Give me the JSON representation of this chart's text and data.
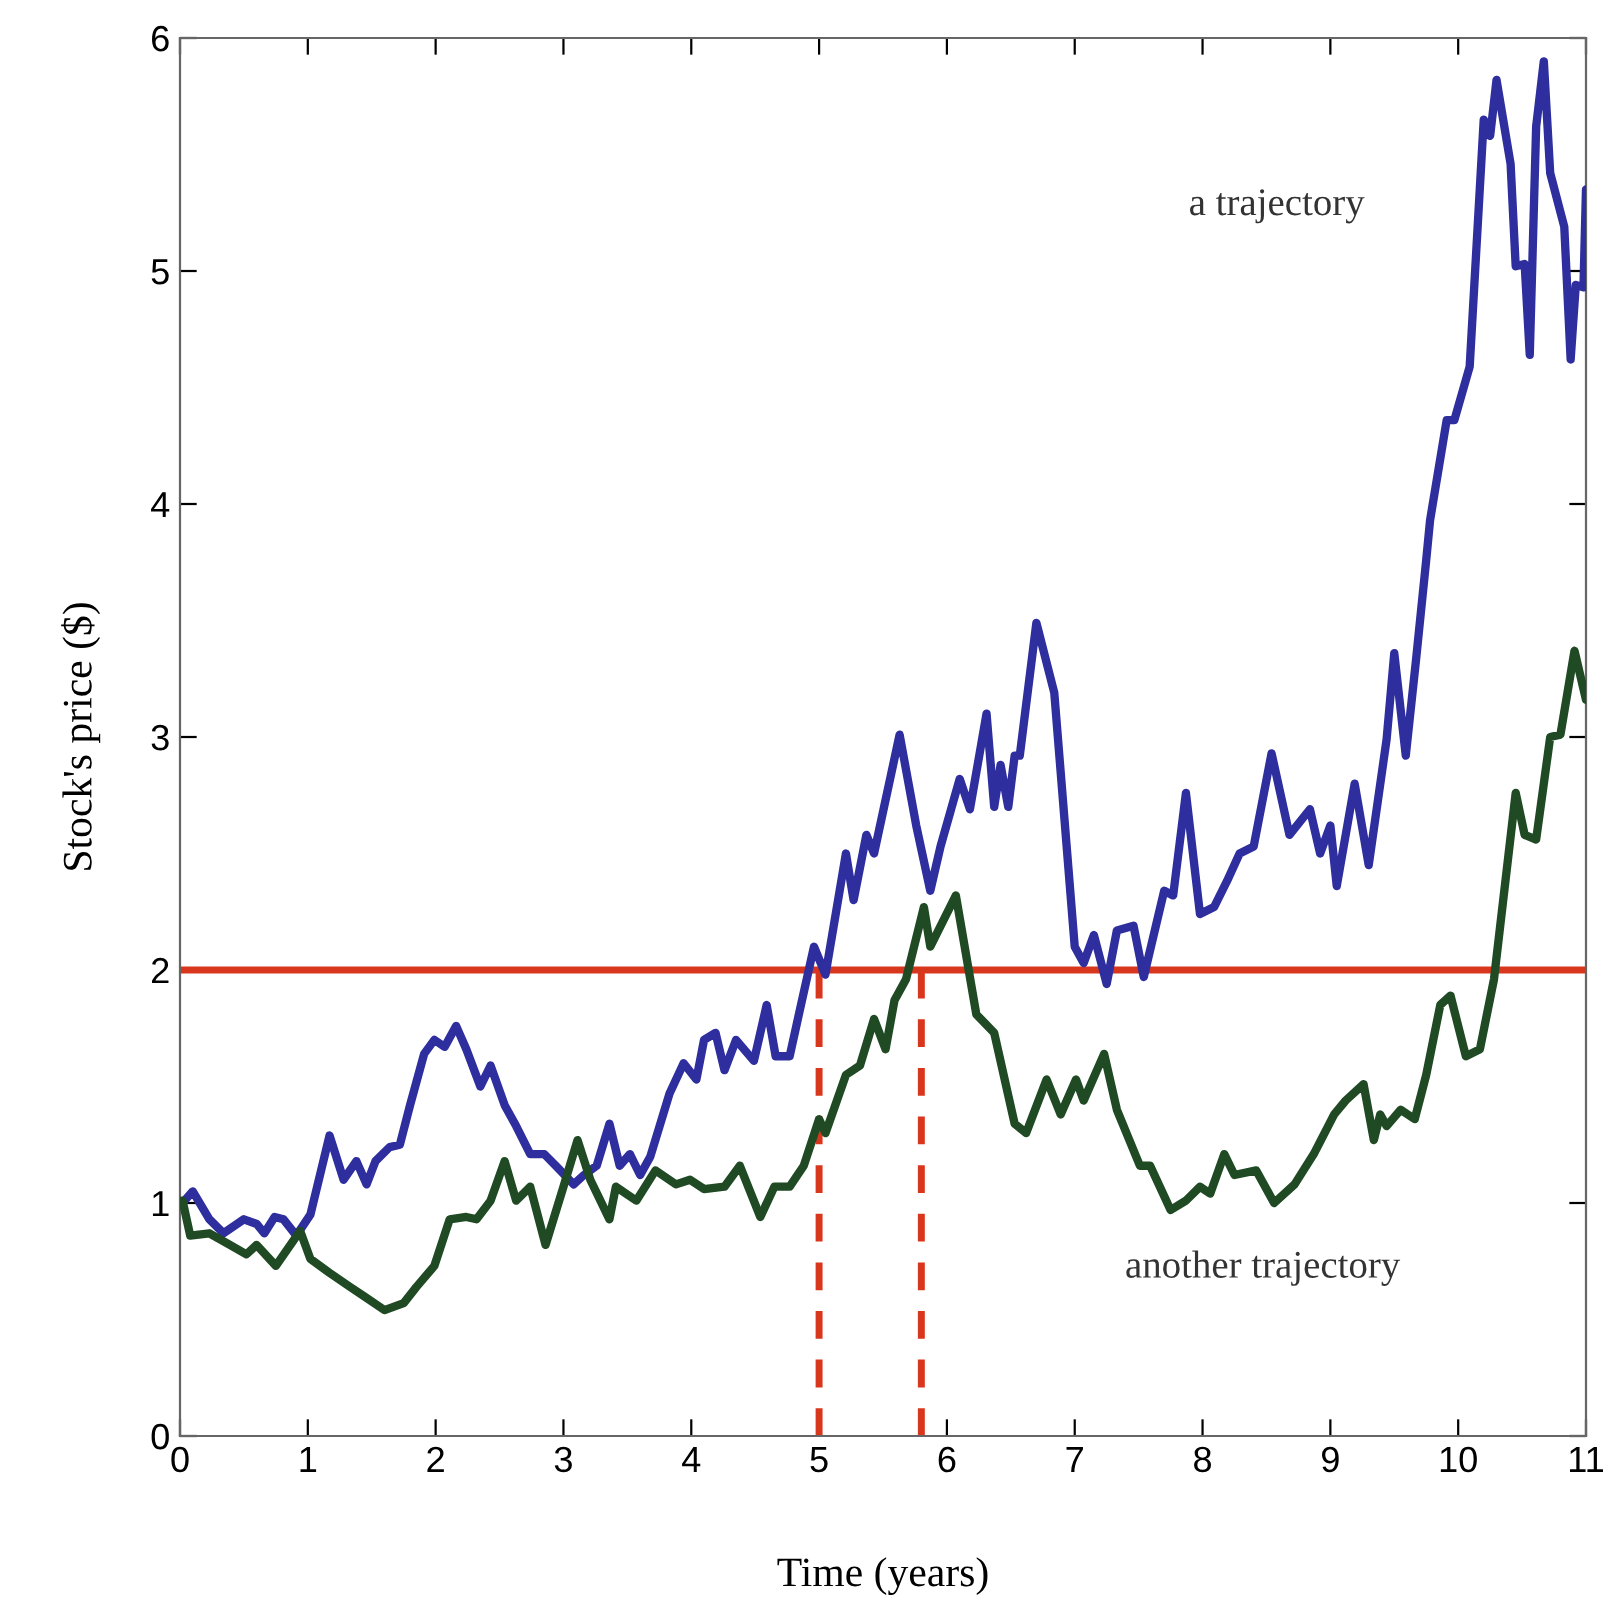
{
  "chart_data": {
    "type": "line",
    "xlabel": "Time (years)",
    "ylabel": "Stock's price ($)",
    "xlim": [
      0,
      11
    ],
    "ylim": [
      0,
      6
    ],
    "xticks": [
      0,
      1,
      2,
      3,
      4,
      5,
      6,
      7,
      8,
      9,
      10,
      11
    ],
    "yticks": [
      0,
      1,
      2,
      3,
      4,
      5,
      6
    ],
    "grid": false,
    "legend": false,
    "marker": "none",
    "line_style": "solid",
    "series": [
      {
        "name": "a trajectory",
        "color": "#2e2e9e",
        "x": [
          0.02,
          0.1,
          0.23,
          0.34,
          0.5,
          0.6,
          0.66,
          0.74,
          0.81,
          0.91,
          1.02,
          1.17,
          1.28,
          1.38,
          1.46,
          1.53,
          1.64,
          1.72,
          1.8,
          1.91,
          1.99,
          2.07,
          2.16,
          2.24,
          2.35,
          2.43,
          2.54,
          2.63,
          2.74,
          2.85,
          2.94,
          3.08,
          3.16,
          3.26,
          3.36,
          3.44,
          3.52,
          3.6,
          3.68,
          3.83,
          3.94,
          4.04,
          4.1,
          4.19,
          4.26,
          4.35,
          4.49,
          4.59,
          4.66,
          4.77,
          4.85,
          4.96,
          5.05,
          5.21,
          5.27,
          5.37,
          5.43,
          5.63,
          5.76,
          5.87,
          5.95,
          6.1,
          6.18,
          6.31,
          6.37,
          6.42,
          6.48,
          6.53,
          6.57,
          6.7,
          6.84,
          7.0,
          7.07,
          7.15,
          7.25,
          7.33,
          7.46,
          7.54,
          7.7,
          7.77,
          7.87,
          7.98,
          8.09,
          8.19,
          8.29,
          8.4,
          8.54,
          8.68,
          8.84,
          8.92,
          9.0,
          9.05,
          9.19,
          9.3,
          9.44,
          9.5,
          9.59,
          9.67,
          9.75,
          9.78,
          9.91,
          9.97,
          10.09,
          10.2,
          10.25,
          10.3,
          10.41,
          10.45,
          10.52,
          10.56,
          10.61,
          10.67,
          10.72,
          10.83,
          10.88,
          10.92,
          10.98,
          11.0
        ],
        "values": [
          1.0,
          1.05,
          0.93,
          0.87,
          0.93,
          0.91,
          0.87,
          0.94,
          0.93,
          0.86,
          0.95,
          1.29,
          1.1,
          1.18,
          1.08,
          1.18,
          1.24,
          1.25,
          1.42,
          1.64,
          1.7,
          1.67,
          1.76,
          1.66,
          1.5,
          1.59,
          1.42,
          1.33,
          1.21,
          1.21,
          1.16,
          1.08,
          1.12,
          1.16,
          1.34,
          1.16,
          1.21,
          1.12,
          1.2,
          1.47,
          1.6,
          1.53,
          1.7,
          1.73,
          1.57,
          1.7,
          1.61,
          1.85,
          1.63,
          1.63,
          1.83,
          2.1,
          1.98,
          2.5,
          2.3,
          2.58,
          2.5,
          3.01,
          2.62,
          2.34,
          2.53,
          2.82,
          2.69,
          3.1,
          2.7,
          2.88,
          2.7,
          2.92,
          2.92,
          3.49,
          3.19,
          2.1,
          2.03,
          2.15,
          1.94,
          2.17,
          2.19,
          1.97,
          2.34,
          2.32,
          2.76,
          2.24,
          2.27,
          2.38,
          2.5,
          2.53,
          2.93,
          2.58,
          2.69,
          2.5,
          2.62,
          2.36,
          2.8,
          2.45,
          2.99,
          3.36,
          2.92,
          3.33,
          3.76,
          3.93,
          4.36,
          4.36,
          4.59,
          5.65,
          5.58,
          5.82,
          5.46,
          5.02,
          5.03,
          4.64,
          5.62,
          5.9,
          5.42,
          5.19,
          4.62,
          4.94,
          4.93,
          5.35
        ]
      },
      {
        "name": "another trajectory",
        "color": "#1f4a24",
        "x": [
          0.02,
          0.08,
          0.23,
          0.39,
          0.52,
          0.6,
          0.75,
          0.94,
          1.02,
          1.17,
          1.33,
          1.44,
          1.6,
          1.75,
          1.85,
          1.99,
          2.11,
          2.24,
          2.32,
          2.43,
          2.54,
          2.63,
          2.74,
          2.86,
          3.0,
          3.11,
          3.21,
          3.36,
          3.41,
          3.57,
          3.72,
          3.88,
          3.99,
          4.1,
          4.26,
          4.38,
          4.54,
          4.65,
          4.77,
          4.88,
          5.0,
          5.05,
          5.21,
          5.32,
          5.43,
          5.52,
          5.59,
          5.68,
          5.82,
          5.87,
          6.07,
          6.23,
          6.37,
          6.53,
          6.62,
          6.78,
          6.89,
          7.01,
          7.07,
          7.23,
          7.33,
          7.51,
          7.59,
          7.75,
          7.87,
          7.98,
          8.06,
          8.17,
          8.25,
          8.42,
          8.56,
          8.72,
          8.87,
          9.03,
          9.12,
          9.26,
          9.34,
          9.39,
          9.44,
          9.55,
          9.66,
          9.75,
          9.86,
          9.94,
          10.06,
          10.17,
          10.28,
          10.45,
          10.52,
          10.61,
          10.72,
          10.8,
          10.91,
          11.0
        ],
        "values": [
          1.01,
          0.86,
          0.87,
          0.82,
          0.78,
          0.82,
          0.73,
          0.88,
          0.76,
          0.7,
          0.64,
          0.6,
          0.54,
          0.57,
          0.64,
          0.73,
          0.93,
          0.94,
          0.93,
          1.01,
          1.18,
          1.01,
          1.07,
          0.82,
          1.07,
          1.27,
          1.1,
          0.93,
          1.07,
          1.01,
          1.14,
          1.08,
          1.1,
          1.06,
          1.07,
          1.16,
          0.94,
          1.07,
          1.07,
          1.16,
          1.36,
          1.3,
          1.55,
          1.59,
          1.79,
          1.66,
          1.87,
          1.96,
          2.27,
          2.1,
          2.32,
          1.81,
          1.73,
          1.34,
          1.3,
          1.53,
          1.38,
          1.53,
          1.44,
          1.64,
          1.4,
          1.16,
          1.16,
          0.97,
          1.01,
          1.07,
          1.04,
          1.21,
          1.12,
          1.14,
          1.0,
          1.08,
          1.21,
          1.38,
          1.44,
          1.51,
          1.27,
          1.38,
          1.33,
          1.4,
          1.36,
          1.55,
          1.85,
          1.89,
          1.63,
          1.66,
          1.96,
          2.76,
          2.58,
          2.56,
          3.0,
          3.01,
          3.37,
          3.16
        ]
      },
      {
        "color": "#d9361e",
        "line_style": "dashed",
        "x": [
          5,
          5
        ],
        "values": [
          0,
          2
        ]
      },
      {
        "color": "#d9361e",
        "line_style": "dashed",
        "x": [
          5.8,
          5.8
        ],
        "values": [
          0,
          2
        ]
      }
    ],
    "ref_lines": [
      {
        "axis": "y",
        "value": 2,
        "color": "#d9361e",
        "line_style": "solid"
      }
    ]
  }
}
